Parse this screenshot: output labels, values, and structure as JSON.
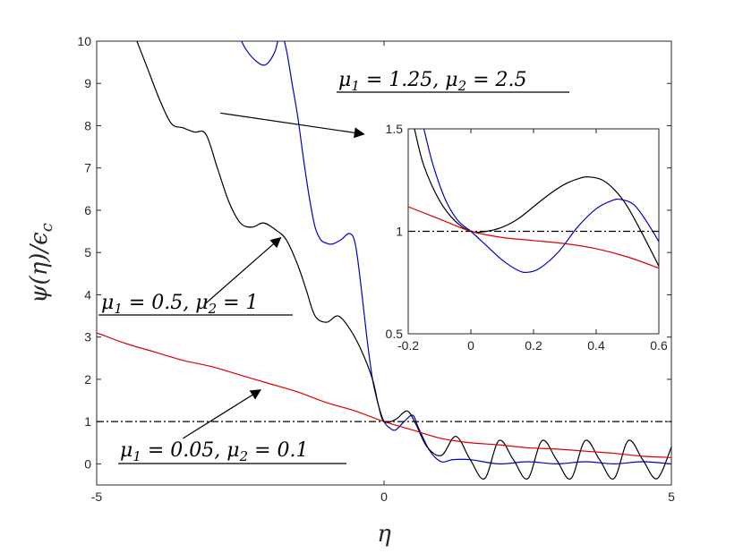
{
  "chart_data": [
    {
      "type": "line",
      "xlabel": "η",
      "ylabel": "ψ(η)/ϵ_c",
      "xlim": [
        -5,
        5
      ],
      "ylim": [
        -0.5,
        10
      ],
      "xticks": [
        "-5",
        "0",
        "5"
      ],
      "yticks": [
        "0",
        "1",
        "2",
        "3",
        "4",
        "5",
        "6",
        "7",
        "8",
        "9",
        "10"
      ],
      "series": [
        {
          "color": "#0000cc",
          "x": [
            -2.55,
            -2.4,
            -2.2,
            -2.05,
            -1.9,
            -1.8,
            -1.7,
            -1.6,
            -1.5,
            -1.4,
            -1.3,
            -1.2,
            -1.1,
            -1.0,
            -0.9,
            -0.75,
            -0.6,
            -0.5,
            -0.4,
            -0.3,
            -0.2,
            -0.1,
            0.0,
            0.1,
            0.2,
            0.35,
            0.5,
            0.6,
            0.8,
            1.0,
            1.2,
            1.5,
            2.0,
            2.5,
            3.0,
            3.5,
            4.0,
            4.5,
            5.0
          ],
          "y": [
            10.2,
            9.8,
            9.5,
            9.45,
            9.75,
            10.2,
            9.8,
            9.0,
            8.2,
            7.2,
            6.3,
            5.6,
            5.3,
            5.22,
            5.2,
            5.3,
            5.45,
            5.2,
            4.2,
            3.0,
            2.0,
            1.4,
            1.0,
            0.85,
            0.8,
            1.0,
            1.15,
            0.85,
            0.3,
            0.05,
            0.1,
            0.1,
            0.0,
            0.05,
            0.0,
            0.05,
            0.0,
            0.05,
            0.0
          ]
        },
        {
          "color": "#000000",
          "x": [
            -4.3,
            -4.1,
            -3.9,
            -3.7,
            -3.5,
            -3.3,
            -3.1,
            -2.9,
            -2.7,
            -2.5,
            -2.3,
            -2.1,
            -1.9,
            -1.7,
            -1.5,
            -1.35,
            -1.2,
            -1.0,
            -0.8,
            -0.6,
            -0.4,
            -0.2,
            -0.1,
            0.0,
            0.2,
            0.4,
            0.55,
            0.75,
            1.0,
            1.25,
            1.5,
            1.75,
            2.0,
            2.25,
            2.5,
            2.75,
            3.0,
            3.25,
            3.5,
            3.75,
            4.0,
            4.25,
            4.5,
            4.75,
            5.0
          ],
          "y": [
            10.0,
            9.3,
            8.6,
            8.05,
            7.95,
            7.85,
            7.8,
            7.0,
            6.2,
            5.7,
            5.6,
            5.7,
            5.55,
            5.3,
            4.7,
            4.1,
            3.5,
            3.35,
            3.5,
            3.2,
            2.7,
            2.0,
            1.4,
            1.0,
            1.05,
            1.25,
            0.95,
            0.4,
            0.2,
            0.65,
            0.1,
            -0.35,
            0.55,
            0.1,
            -0.35,
            0.55,
            0.1,
            -0.35,
            0.55,
            0.1,
            -0.35,
            0.55,
            0.1,
            -0.35,
            0.4
          ]
        },
        {
          "color": "#dd0000",
          "x": [
            -5.0,
            -4.5,
            -4.0,
            -3.5,
            -3.0,
            -2.5,
            -2.0,
            -1.5,
            -1.0,
            -0.5,
            0.0,
            0.5,
            1.0,
            1.5,
            2.0,
            2.5,
            3.0,
            3.5,
            4.0,
            4.5,
            5.0
          ],
          "y": [
            3.1,
            2.85,
            2.65,
            2.45,
            2.3,
            2.1,
            1.9,
            1.7,
            1.45,
            1.25,
            1.0,
            0.8,
            0.6,
            0.5,
            0.45,
            0.38,
            0.35,
            0.3,
            0.25,
            0.18,
            0.15
          ]
        },
        {
          "color": "#000000",
          "style": "dashdot",
          "x": [
            -5,
            5
          ],
          "y": [
            1,
            1
          ]
        }
      ],
      "annotations": [
        {
          "text": "μ1 = 1.25, μ2 = 2.5",
          "tail": [
            -0.35,
            7.8
          ],
          "head": [
            -2.85,
            8.3
          ],
          "label_anchor": "top-right"
        },
        {
          "text": "μ1 = 0.5, μ2 = 1",
          "tail": [
            -1.8,
            5.35
          ],
          "head": [
            -3.1,
            3.8
          ],
          "label_anchor": "middle-left"
        },
        {
          "text": "μ1 = 0.05, μ2 = 0.1",
          "tail": [
            -2.15,
            1.75
          ],
          "head": [
            -3.5,
            0.6
          ],
          "label_anchor": "bottom-left"
        }
      ]
    },
    {
      "type": "line",
      "inset": true,
      "xlim": [
        -0.2,
        0.6
      ],
      "ylim": [
        0.5,
        1.5
      ],
      "xticks": [
        "-0.2",
        "0",
        "0.2",
        "0.4",
        "0.6"
      ],
      "yticks": [
        "0.5",
        "1",
        "1.5"
      ],
      "series": [
        {
          "color": "#000000",
          "x": [
            -0.18,
            -0.15,
            -0.1,
            -0.05,
            0.0,
            0.05,
            0.1,
            0.15,
            0.2,
            0.25,
            0.3,
            0.35,
            0.38,
            0.42,
            0.46,
            0.5,
            0.55,
            0.6
          ],
          "y": [
            1.5,
            1.32,
            1.15,
            1.05,
            1.0,
            1.0,
            1.02,
            1.06,
            1.12,
            1.18,
            1.23,
            1.26,
            1.265,
            1.25,
            1.2,
            1.12,
            0.98,
            0.83
          ]
        },
        {
          "color": "#0000cc",
          "x": [
            -0.15,
            -0.12,
            -0.08,
            -0.04,
            0.0,
            0.05,
            0.1,
            0.15,
            0.18,
            0.22,
            0.28,
            0.34,
            0.4,
            0.45,
            0.48,
            0.52,
            0.56,
            0.6
          ],
          "y": [
            1.5,
            1.32,
            1.15,
            1.05,
            1.0,
            0.93,
            0.86,
            0.81,
            0.8,
            0.82,
            0.9,
            1.02,
            1.11,
            1.15,
            1.155,
            1.13,
            1.05,
            0.95
          ]
        },
        {
          "color": "#dd0000",
          "x": [
            -0.2,
            -0.1,
            0.0,
            0.1,
            0.2,
            0.3,
            0.4,
            0.5,
            0.6
          ],
          "y": [
            1.12,
            1.06,
            1.0,
            0.97,
            0.955,
            0.94,
            0.915,
            0.875,
            0.82
          ]
        },
        {
          "color": "#000000",
          "style": "dashdot",
          "x": [
            -0.2,
            0.6
          ],
          "y": [
            1,
            1
          ]
        }
      ]
    }
  ]
}
